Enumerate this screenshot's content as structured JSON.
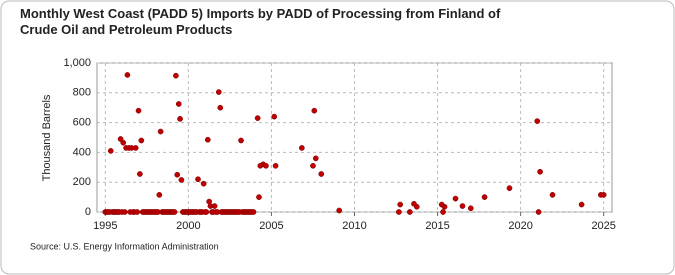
{
  "chart_data": {
    "type": "scatter",
    "title": "Monthly West Coast (PADD 5) Imports by PADD of Processing from Finland of Crude Oil and Petroleum Products",
    "ylabel": "Thousand Barrels",
    "source": "Source: U.S. Energy Information Administration",
    "xlim": [
      1994.5,
      2025.5
    ],
    "xticks": [
      1995,
      2000,
      2005,
      2010,
      2015,
      2020,
      2025
    ],
    "ylim": [
      0,
      1000
    ],
    "yticks": [
      0,
      200,
      400,
      600,
      800,
      {
        "value": 1000,
        "label": "1,000"
      }
    ],
    "grid": true,
    "series": [
      {
        "name": "Finland",
        "color": "#c00000",
        "x": [
          1995.0,
          1995.08,
          1995.17,
          1995.25,
          1995.33,
          1995.42,
          1995.5,
          1995.58,
          1995.67,
          1995.75,
          1995.83,
          1995.92,
          1996.0,
          1996.08,
          1996.17,
          1996.25,
          1996.33,
          1996.42,
          1996.5,
          1996.58,
          1996.67,
          1996.75,
          1996.83,
          1996.92,
          1997.0,
          1997.08,
          1997.17,
          1997.25,
          1997.33,
          1997.42,
          1997.5,
          1997.58,
          1997.67,
          1997.75,
          1997.83,
          1997.92,
          1998.0,
          1998.08,
          1998.17,
          1998.25,
          1998.33,
          1998.42,
          1998.5,
          1998.58,
          1998.67,
          1998.75,
          1998.83,
          1998.92,
          1999.0,
          1999.08,
          1999.17,
          1999.25,
          1999.33,
          1999.42,
          1999.5,
          1999.58,
          1999.67,
          1999.75,
          1999.83,
          1999.92,
          2000.0,
          2000.08,
          2000.17,
          2000.25,
          2000.33,
          2000.42,
          2000.5,
          2000.58,
          2000.67,
          2000.75,
          2000.83,
          2000.92,
          2001.0,
          2001.08,
          2001.17,
          2001.25,
          2001.33,
          2001.42,
          2001.5,
          2001.58,
          2001.67,
          2001.75,
          2001.83,
          2001.92,
          2002.0,
          2002.08,
          2002.17,
          2002.25,
          2002.33,
          2002.42,
          2002.5,
          2002.58,
          2002.67,
          2002.75,
          2002.83,
          2002.92,
          2003.0,
          2003.08,
          2003.17,
          2003.25,
          2003.33,
          2003.42,
          2003.5,
          2003.58,
          2003.67,
          2003.75,
          2003.83,
          2003.92,
          2004.17,
          2004.25,
          2004.33,
          2004.5,
          2004.67,
          2005.17,
          2005.25,
          2006.83,
          2007.5,
          2007.58,
          2007.67,
          2008.0,
          2009.08,
          2012.67,
          2012.75,
          2013.33,
          2013.58,
          2013.75,
          2015.25,
          2015.33,
          2015.42,
          2016.08,
          2016.5,
          2017.0,
          2017.83,
          2019.33,
          2021.0,
          2021.08,
          2021.17,
          2021.92,
          2023.67,
          2024.83,
          2025.0
        ],
        "values": [
          0,
          0,
          0,
          0,
          410,
          0,
          0,
          0,
          0,
          0,
          0,
          490,
          0,
          465,
          0,
          430,
          920,
          430,
          0,
          430,
          0,
          0,
          430,
          0,
          680,
          255,
          480,
          0,
          0,
          0,
          0,
          0,
          0,
          0,
          0,
          0,
          0,
          0,
          0,
          115,
          540,
          0,
          0,
          0,
          0,
          0,
          0,
          0,
          0,
          0,
          0,
          915,
          250,
          725,
          625,
          215,
          0,
          0,
          0,
          0,
          0,
          0,
          0,
          0,
          0,
          0,
          0,
          220,
          0,
          0,
          0,
          190,
          0,
          0,
          485,
          70,
          40,
          0,
          0,
          40,
          0,
          0,
          805,
          700,
          0,
          0,
          0,
          0,
          0,
          0,
          0,
          0,
          0,
          0,
          0,
          0,
          0,
          0,
          480,
          0,
          0,
          0,
          0,
          0,
          0,
          0,
          0,
          0,
          630,
          100,
          310,
          320,
          310,
          640,
          310,
          430,
          310,
          680,
          360,
          255,
          10,
          0,
          50,
          0,
          55,
          35,
          50,
          0,
          35,
          90,
          40,
          25,
          100,
          160,
          610,
          0,
          270,
          115,
          50,
          115,
          115
        ]
      }
    ]
  }
}
